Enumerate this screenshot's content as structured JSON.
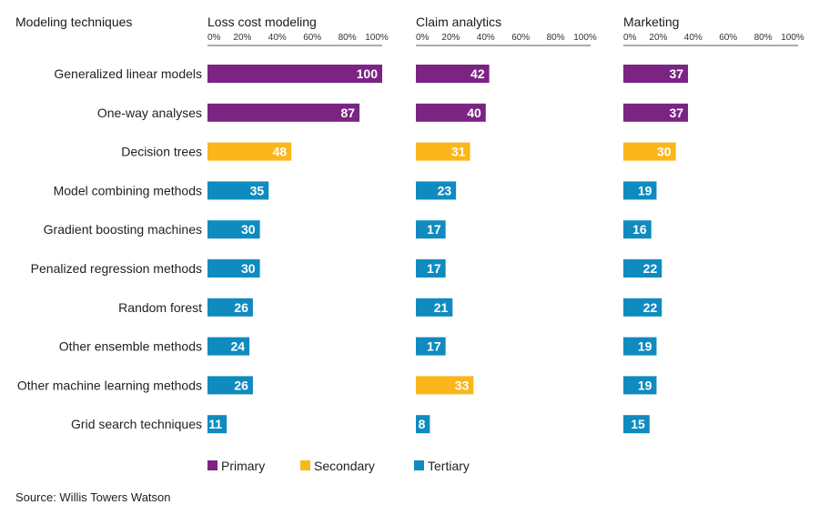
{
  "chart_data": {
    "type": "bar",
    "orientation": "horizontal",
    "row_header": "Modeling techniques",
    "categories": [
      "Generalized linear models",
      "One-way analyses",
      "Decision trees",
      "Model combining methods",
      "Gradient boosting machines",
      "Penalized regression methods",
      "Random forest",
      "Other ensemble methods",
      "Other machine learning methods",
      "Grid search techniques"
    ],
    "panels": [
      {
        "title": "Loss cost modeling",
        "values": [
          100,
          87,
          48,
          35,
          30,
          30,
          26,
          24,
          26,
          11
        ],
        "levels": [
          "Primary",
          "Primary",
          "Secondary",
          "Tertiary",
          "Tertiary",
          "Tertiary",
          "Tertiary",
          "Tertiary",
          "Tertiary",
          "Tertiary"
        ]
      },
      {
        "title": "Claim analytics",
        "values": [
          42,
          40,
          31,
          23,
          17,
          17,
          21,
          17,
          33,
          8
        ],
        "levels": [
          "Primary",
          "Primary",
          "Secondary",
          "Tertiary",
          "Tertiary",
          "Tertiary",
          "Tertiary",
          "Tertiary",
          "Secondary",
          "Tertiary"
        ]
      },
      {
        "title": "Marketing",
        "values": [
          37,
          37,
          30,
          19,
          16,
          22,
          22,
          19,
          19,
          15
        ],
        "levels": [
          "Primary",
          "Primary",
          "Secondary",
          "Tertiary",
          "Tertiary",
          "Tertiary",
          "Tertiary",
          "Tertiary",
          "Tertiary",
          "Tertiary"
        ]
      }
    ],
    "xticks": [
      "0%",
      "20%",
      "40%",
      "60%",
      "80%",
      "100%"
    ],
    "xlim": [
      0,
      100
    ],
    "legend": [
      {
        "label": "Primary",
        "color": "#7b2484"
      },
      {
        "label": "Secondary",
        "color": "#fbb61c"
      },
      {
        "label": "Tertiary",
        "color": "#0f8bbf"
      }
    ],
    "legend_position": "bottom",
    "grid": false
  },
  "source": "Source: Willis Towers Watson"
}
